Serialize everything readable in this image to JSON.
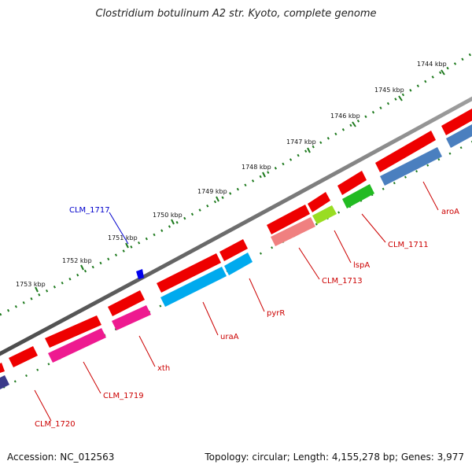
{
  "title": "Clostridium botulinum A2 str. Kyoto, complete genome",
  "footer": {
    "accession": "Accession: NC_012563",
    "summary": "Topology: circular; Length: 4,155,278 bp; Genes: 3,977"
  },
  "kbp_ticks": [
    "1744 kbp",
    "1745 kbp",
    "1746 kbp",
    "1747 kbp",
    "1748 kbp",
    "1749 kbp",
    "1750 kbp",
    "1751 kbp",
    "1752 kbp",
    "1753 kbp"
  ],
  "gene_labels": [
    {
      "text": "CLM_1717",
      "color": "#0000cc"
    },
    {
      "text": "aroA",
      "color": "#cc0000"
    },
    {
      "text": "CLM_1711",
      "color": "#cc0000"
    },
    {
      "text": "lspA",
      "color": "#cc0000"
    },
    {
      "text": "CLM_1713",
      "color": "#cc0000"
    },
    {
      "text": "pyrR",
      "color": "#cc0000"
    },
    {
      "text": "uraA",
      "color": "#cc0000"
    },
    {
      "text": "xth",
      "color": "#cc0000"
    },
    {
      "text": "CLM_1719",
      "color": "#cc0000"
    },
    {
      "text": "CLM_1720",
      "color": "#cc0000"
    }
  ],
  "colors": {
    "backbone": "#7a7a7a",
    "dots": "#1e7a1e",
    "forward_gene": "#ee0000",
    "cyan_gene": "#00aaee",
    "magenta_gene": "#ee1a90",
    "steel_gene": "#4a7fbf",
    "green_gene": "#22bb22",
    "yellowgreen_gene": "#99dd22",
    "salmon_gene": "#f08080",
    "navy_gene": "#3a3a8a",
    "marker": "#0000ee"
  }
}
